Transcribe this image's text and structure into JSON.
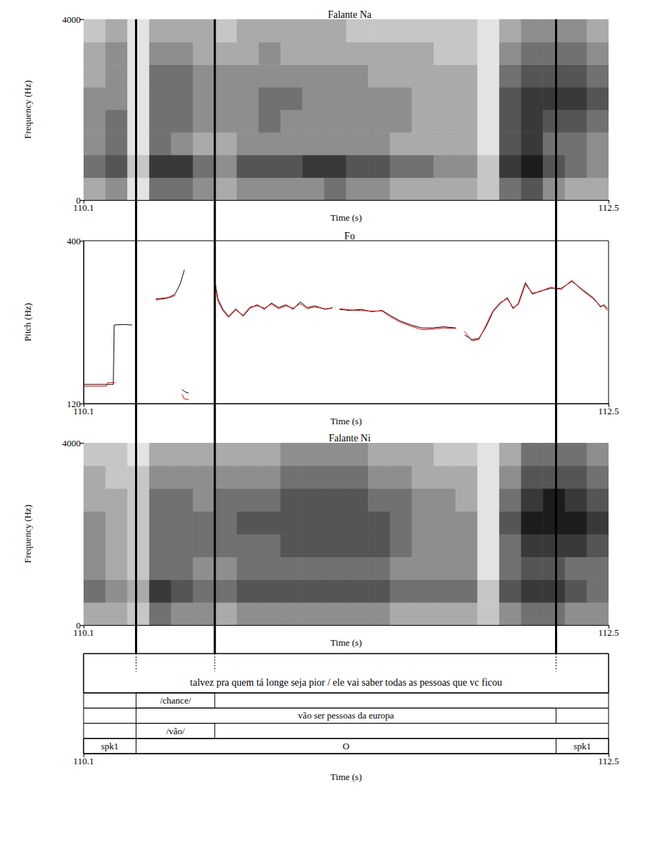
{
  "chart_data": [
    {
      "type": "spectrogram",
      "title": "Falante Na",
      "x_label": "Time (s)",
      "y_label": "Frequency (Hz)",
      "xlim": [
        110.1,
        112.5
      ],
      "xticks": [
        110.1,
        112.5
      ],
      "ylim": [
        0,
        4000
      ],
      "yticks": [
        0,
        4000
      ],
      "grid": false,
      "color": "#000000",
      "cell_range": [
        0,
        9
      ],
      "time_bins": [
        110.1,
        110.2,
        110.3,
        110.4,
        110.5,
        110.6,
        110.7,
        110.8,
        110.9,
        111.0,
        111.1,
        111.2,
        111.3,
        111.4,
        111.5,
        111.6,
        111.7,
        111.8,
        111.9,
        112.0,
        112.1,
        112.2,
        112.3,
        112.4,
        112.5
      ],
      "freq_bins": [
        0,
        500,
        1000,
        1500,
        2000,
        2500,
        3000,
        3500,
        4000
      ],
      "cells": [
        [
          3,
          4,
          1,
          5,
          5,
          4,
          3,
          4,
          4,
          4,
          4,
          5,
          4,
          4,
          3,
          3,
          3,
          3,
          2,
          5,
          6,
          4,
          3,
          3
        ],
        [
          5,
          6,
          2,
          7,
          7,
          5,
          4,
          6,
          6,
          6,
          7,
          7,
          6,
          6,
          5,
          5,
          4,
          4,
          2,
          7,
          8,
          6,
          5,
          4
        ],
        [
          4,
          5,
          1,
          5,
          4,
          3,
          3,
          4,
          4,
          4,
          4,
          4,
          4,
          4,
          3,
          3,
          3,
          3,
          1,
          6,
          7,
          5,
          5,
          4
        ],
        [
          4,
          5,
          1,
          5,
          5,
          4,
          4,
          4,
          5,
          4,
          4,
          4,
          4,
          4,
          4,
          3,
          3,
          3,
          1,
          6,
          7,
          6,
          6,
          5
        ],
        [
          4,
          4,
          1,
          5,
          5,
          4,
          4,
          4,
          5,
          5,
          4,
          4,
          4,
          4,
          4,
          3,
          3,
          3,
          1,
          6,
          7,
          7,
          7,
          6
        ],
        [
          3,
          4,
          1,
          5,
          5,
          4,
          4,
          4,
          4,
          4,
          4,
          4,
          4,
          3,
          3,
          3,
          3,
          3,
          1,
          5,
          6,
          6,
          6,
          5
        ],
        [
          3,
          4,
          1,
          4,
          4,
          3,
          3,
          3,
          4,
          3,
          3,
          3,
          3,
          3,
          3,
          3,
          2,
          2,
          1,
          4,
          5,
          5,
          5,
          4
        ],
        [
          2,
          3,
          1,
          3,
          3,
          3,
          2,
          3,
          3,
          3,
          3,
          3,
          2,
          2,
          2,
          2,
          2,
          2,
          1,
          3,
          4,
          4,
          4,
          3
        ]
      ]
    },
    {
      "type": "line",
      "title": "Fo",
      "x_label": "Time (s)",
      "y_label": "Pitch (Hz)",
      "xlim": [
        110.1,
        112.5
      ],
      "xticks": [
        110.1,
        112.5
      ],
      "ylim": [
        120,
        400
      ],
      "yticks": [
        120,
        400
      ],
      "grid": false,
      "series": [
        {
          "color": "#000000",
          "x": [
            110.103,
            110.15,
            110.208,
            110.236,
            110.24,
            110.28,
            110.322,
            110.37,
            110.43,
            110.486,
            110.518,
            110.541,
            110.561,
            110.556,
            110.55,
            110.565,
            110.58,
            110.64,
            110.698,
            110.714,
            110.737,
            110.763,
            110.796,
            110.829,
            110.861,
            110.894,
            110.927,
            110.959,
            110.992,
            111.025,
            111.058,
            111.09,
            111.123,
            111.156,
            111.205,
            111.237,
            111.253,
            111.27,
            111.319,
            111.368,
            111.417,
            111.466,
            111.499,
            111.548,
            111.597,
            111.646,
            111.695,
            111.744,
            111.803,
            111.82,
            111.842,
            111.875,
            111.907,
            111.94,
            111.972,
            112.005,
            112.037,
            112.064,
            112.087,
            112.12,
            112.152,
            112.184,
            112.234,
            112.283,
            112.332,
            112.381,
            112.43,
            112.463,
            112.479,
            112.495
          ],
          "values": [
            153,
            153,
            153,
            153,
            255,
            256,
            255,
            null,
            300,
            302,
            308,
            325,
            350,
            null,
            144,
            140,
            138,
            null,
            335,
            300,
            282,
            270,
            283,
            270,
            284,
            290,
            282,
            293,
            285,
            290,
            282,
            295,
            285,
            288,
            282,
            285,
            null,
            282,
            280,
            282,
            278,
            280,
            272,
            262,
            255,
            250,
            250,
            252,
            250,
            null,
            238,
            230,
            232,
            252,
            278,
            292,
            302,
            283,
            292,
            328,
            308,
            313,
            318,
            318,
            330,
            316,
            302,
            286,
            290,
            283
          ]
        },
        {
          "color": "#ff0000",
          "x": [
            110.103,
            110.15,
            110.205,
            110.21,
            110.245,
            110.3,
            110.43,
            110.47,
            110.5,
            110.52,
            110.53,
            110.55,
            110.56,
            110.58,
            110.64,
            110.698,
            110.714,
            110.737,
            110.763,
            110.796,
            110.829,
            110.861,
            110.894,
            110.927,
            110.959,
            110.992,
            111.025,
            111.058,
            111.09,
            111.123,
            111.156,
            111.205,
            111.237,
            111.253,
            111.27,
            111.319,
            111.368,
            111.417,
            111.466,
            111.499,
            111.548,
            111.597,
            111.646,
            111.695,
            111.744,
            111.803,
            111.82,
            111.842,
            111.875,
            111.907,
            111.94,
            111.972,
            112.005,
            112.037,
            112.064,
            112.087,
            112.12,
            112.152,
            112.184,
            112.234,
            112.283,
            112.332,
            112.381,
            112.43,
            112.463,
            112.479,
            112.495
          ],
          "values": [
            150,
            150,
            150,
            156,
            156,
            null,
            298,
            300,
            303,
            306,
            null,
            136,
            128,
            127,
            null,
            330,
            296,
            280,
            268,
            281,
            272,
            286,
            288,
            284,
            291,
            283,
            288,
            284,
            292,
            283,
            286,
            283,
            284,
            null,
            283,
            281,
            280,
            279,
            279,
            270,
            260,
            253,
            247,
            248,
            250,
            249,
            null,
            244,
            228,
            230,
            255,
            280,
            294,
            300,
            285,
            290,
            325,
            310,
            312,
            320,
            316,
            332,
            314,
            300,
            288,
            288,
            280
          ]
        }
      ]
    },
    {
      "type": "spectrogram",
      "title": "Falante Ni",
      "x_label": "Time (s)",
      "y_label": "Frequency (Hz)",
      "xlim": [
        110.1,
        112.5
      ],
      "xticks": [
        110.1,
        112.5
      ],
      "ylim": [
        0,
        4000
      ],
      "yticks": [
        0,
        4000
      ],
      "grid": false,
      "color": "#000000",
      "cell_range": [
        0,
        9
      ],
      "time_bins": [
        110.1,
        110.2,
        110.3,
        110.4,
        110.5,
        110.6,
        110.7,
        110.8,
        110.9,
        111.0,
        111.1,
        111.2,
        111.3,
        111.4,
        111.5,
        111.6,
        111.7,
        111.8,
        111.9,
        112.0,
        112.1,
        112.2,
        112.3,
        112.4,
        112.5
      ],
      "freq_bins": [
        0,
        500,
        1000,
        1500,
        2000,
        2500,
        3000,
        3500,
        4000
      ],
      "cells": [
        [
          3,
          3,
          2,
          5,
          4,
          4,
          3,
          4,
          4,
          4,
          4,
          4,
          4,
          4,
          3,
          3,
          3,
          3,
          2,
          4,
          5,
          5,
          4,
          4
        ],
        [
          5,
          4,
          3,
          7,
          6,
          5,
          5,
          6,
          6,
          6,
          6,
          6,
          6,
          6,
          5,
          5,
          5,
          5,
          2,
          6,
          7,
          7,
          6,
          5
        ],
        [
          4,
          3,
          2,
          5,
          5,
          4,
          4,
          5,
          5,
          5,
          5,
          5,
          5,
          5,
          4,
          4,
          4,
          4,
          1,
          5,
          6,
          6,
          5,
          5
        ],
        [
          4,
          3,
          2,
          5,
          5,
          5,
          5,
          5,
          5,
          6,
          6,
          6,
          6,
          6,
          5,
          4,
          4,
          4,
          1,
          5,
          7,
          7,
          7,
          6
        ],
        [
          4,
          3,
          2,
          5,
          5,
          5,
          5,
          6,
          6,
          6,
          6,
          6,
          6,
          6,
          5,
          4,
          4,
          4,
          1,
          6,
          8,
          8,
          8,
          7
        ],
        [
          3,
          3,
          2,
          5,
          5,
          4,
          5,
          5,
          5,
          6,
          6,
          6,
          6,
          5,
          5,
          4,
          4,
          3,
          1,
          5,
          7,
          8,
          7,
          6
        ],
        [
          3,
          2,
          2,
          4,
          4,
          4,
          4,
          4,
          4,
          5,
          5,
          5,
          5,
          4,
          4,
          3,
          3,
          3,
          1,
          4,
          6,
          6,
          6,
          5
        ],
        [
          2,
          2,
          1,
          3,
          3,
          3,
          3,
          3,
          3,
          4,
          4,
          4,
          4,
          3,
          3,
          3,
          2,
          2,
          1,
          3,
          5,
          5,
          5,
          4
        ]
      ]
    },
    {
      "type": "tiers",
      "x_label": "Time (s)",
      "xlim": [
        110.1,
        112.5
      ],
      "xticks": [
        110.1,
        112.5
      ],
      "boundaries": [
        110.34,
        110.7,
        112.26
      ],
      "tiers": [
        [
          {
            "start": 110.1,
            "end": 112.5,
            "text": "talvez pra quem tá longe seja pior / ele vai saber todas as pessoas que vc ficou"
          }
        ],
        [
          {
            "start": 110.34,
            "end": 110.7,
            "text": "/chance/"
          }
        ],
        [
          {
            "start": 110.34,
            "end": 112.26,
            "text": "vão ser pessoas da europa"
          }
        ],
        [
          {
            "start": 110.34,
            "end": 110.7,
            "text": "/vão/"
          }
        ],
        [
          {
            "start": 110.1,
            "end": 110.34,
            "text": "spk1"
          },
          {
            "start": 110.34,
            "end": 112.26,
            "text": "O"
          },
          {
            "start": 112.26,
            "end": 112.5,
            "text": "spk1"
          }
        ]
      ]
    }
  ]
}
